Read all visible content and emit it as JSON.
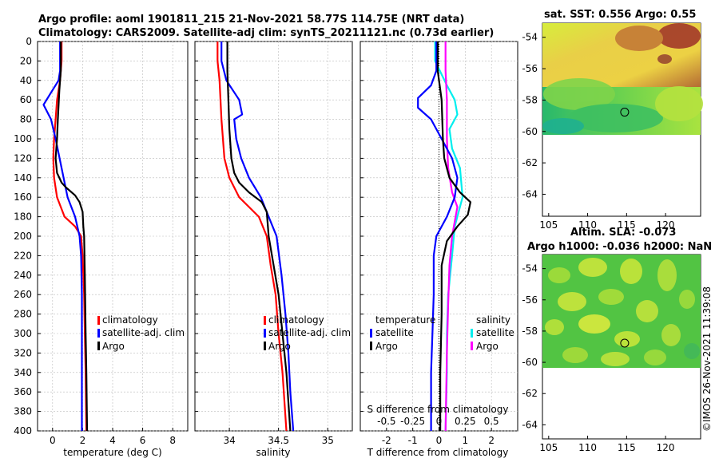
{
  "chart_data": {
    "type": "line",
    "title_line1": "Argo profile: aoml 1901811_215 21-Nov-2021 58.77S 114.75E (NRT data)",
    "title_line2": "Climatology: CARS2009. Satellite-adj clim: synTS_20211121.nc (0.73d earlier)",
    "depth_ticks": [
      "0",
      "20",
      "40",
      "60",
      "80",
      "100",
      "120",
      "140",
      "160",
      "180",
      "200",
      "220",
      "240",
      "260",
      "280",
      "300",
      "320",
      "340",
      "360",
      "380",
      "400"
    ],
    "ylim": [
      0,
      400
    ],
    "colors": {
      "climatology": "#ff0000",
      "satellite": "#0000ff",
      "argo": "#000000",
      "salinity_sat": "#00eeee",
      "salinity_argo": "#ff00ff"
    },
    "temperature_panel": {
      "xlabel": "temperature (deg C)",
      "xlim": [
        -1,
        9
      ],
      "xticks": [
        "0",
        "2",
        "4",
        "6",
        "8"
      ],
      "xtick_values": [
        0,
        2,
        4,
        6,
        8
      ],
      "legend": [
        "climatology",
        "satellite-adj. clim",
        "Argo"
      ],
      "series": {
        "climatology": [
          [
            0.6,
            0
          ],
          [
            0.6,
            20
          ],
          [
            0.5,
            40
          ],
          [
            0.3,
            60
          ],
          [
            0.2,
            80
          ],
          [
            0.1,
            100
          ],
          [
            0.05,
            120
          ],
          [
            0.1,
            140
          ],
          [
            0.3,
            160
          ],
          [
            0.8,
            180
          ],
          [
            1.5,
            190
          ],
          [
            1.9,
            200
          ],
          [
            2.0,
            220
          ],
          [
            2.1,
            260
          ],
          [
            2.15,
            300
          ],
          [
            2.2,
            340
          ],
          [
            2.25,
            400
          ]
        ],
        "satellite": [
          [
            0.5,
            0
          ],
          [
            0.5,
            30
          ],
          [
            0.4,
            40
          ],
          [
            -0.2,
            55
          ],
          [
            -0.6,
            65
          ],
          [
            -0.1,
            80
          ],
          [
            0.2,
            100
          ],
          [
            0.6,
            130
          ],
          [
            1.0,
            160
          ],
          [
            1.5,
            180
          ],
          [
            1.8,
            200
          ],
          [
            1.9,
            220
          ],
          [
            1.95,
            260
          ],
          [
            1.95,
            300
          ],
          [
            1.95,
            340
          ],
          [
            1.95,
            400
          ]
        ],
        "argo": [
          [
            0.55,
            0
          ],
          [
            0.55,
            30
          ],
          [
            0.45,
            50
          ],
          [
            0.35,
            80
          ],
          [
            0.3,
            100
          ],
          [
            0.2,
            120
          ],
          [
            0.3,
            135
          ],
          [
            0.6,
            145
          ],
          [
            0.9,
            150
          ],
          [
            1.5,
            158
          ],
          [
            1.8,
            165
          ],
          [
            2.0,
            175
          ],
          [
            2.05,
            190
          ],
          [
            2.1,
            200
          ],
          [
            2.15,
            240
          ],
          [
            2.2,
            300
          ],
          [
            2.25,
            340
          ],
          [
            2.3,
            400
          ]
        ]
      }
    },
    "salinity_panel": {
      "xlabel": "salinity",
      "xlim": [
        33.65,
        35.25
      ],
      "xticks": [
        "34",
        "34.5",
        "35"
      ],
      "xtick_values": [
        34,
        34.5,
        35
      ],
      "legend": [
        "climatology",
        "satellite-adj. clim",
        "Argo"
      ],
      "series": {
        "climatology": [
          [
            33.88,
            0
          ],
          [
            33.88,
            20
          ],
          [
            33.9,
            40
          ],
          [
            33.92,
            80
          ],
          [
            33.95,
            120
          ],
          [
            34.0,
            140
          ],
          [
            34.1,
            160
          ],
          [
            34.2,
            170
          ],
          [
            34.3,
            180
          ],
          [
            34.38,
            200
          ],
          [
            34.42,
            230
          ],
          [
            34.47,
            260
          ],
          [
            34.5,
            300
          ],
          [
            34.54,
            340
          ],
          [
            34.58,
            400
          ]
        ],
        "satellite": [
          [
            33.92,
            0
          ],
          [
            33.92,
            20
          ],
          [
            33.97,
            40
          ],
          [
            34.1,
            60
          ],
          [
            34.13,
            75
          ],
          [
            34.05,
            80
          ],
          [
            34.07,
            100
          ],
          [
            34.12,
            120
          ],
          [
            34.2,
            140
          ],
          [
            34.32,
            160
          ],
          [
            34.4,
            180
          ],
          [
            34.48,
            200
          ],
          [
            34.53,
            240
          ],
          [
            34.57,
            280
          ],
          [
            34.6,
            320
          ],
          [
            34.62,
            360
          ],
          [
            34.65,
            400
          ]
        ],
        "argo": [
          [
            33.98,
            0
          ],
          [
            33.98,
            30
          ],
          [
            33.99,
            60
          ],
          [
            34.0,
            90
          ],
          [
            34.02,
            120
          ],
          [
            34.05,
            135
          ],
          [
            34.1,
            145
          ],
          [
            34.2,
            155
          ],
          [
            34.33,
            165
          ],
          [
            34.38,
            175
          ],
          [
            34.4,
            200
          ],
          [
            34.45,
            230
          ],
          [
            34.5,
            260
          ],
          [
            34.54,
            300
          ],
          [
            34.58,
            340
          ],
          [
            34.62,
            400
          ]
        ]
      }
    },
    "difference_panel": {
      "xlabel": "T difference from climatology",
      "top_label": "S difference from climatology",
      "xlim": [
        -3,
        3
      ],
      "xticks": [
        "-2",
        "-1",
        "0",
        "1",
        "2"
      ],
      "xtick_values": [
        -2,
        -1,
        0,
        1,
        2
      ],
      "top_ticks": [
        "-0.5",
        "-0.25",
        "0",
        "0.25",
        "0.5"
      ],
      "top_tick_values": [
        -2,
        -1,
        0,
        1,
        2
      ],
      "legend_temperature": [
        "temperature",
        "satellite",
        "Argo"
      ],
      "legend_salinity": [
        "salinity",
        "satellite",
        "Argo"
      ],
      "series": {
        "temperature_satellite": [
          [
            -0.1,
            0
          ],
          [
            -0.1,
            30
          ],
          [
            -0.3,
            45
          ],
          [
            -0.8,
            58
          ],
          [
            -0.8,
            68
          ],
          [
            -0.3,
            80
          ],
          [
            0.1,
            100
          ],
          [
            0.5,
            120
          ],
          [
            0.7,
            140
          ],
          [
            0.6,
            160
          ],
          [
            0.3,
            180
          ],
          [
            -0.1,
            200
          ],
          [
            -0.2,
            220
          ],
          [
            -0.2,
            260
          ],
          [
            -0.25,
            300
          ],
          [
            -0.3,
            340
          ],
          [
            -0.3,
            400
          ]
        ],
        "temperature_argo": [
          [
            -0.05,
            0
          ],
          [
            -0.05,
            30
          ],
          [
            0.1,
            60
          ],
          [
            0.15,
            100
          ],
          [
            0.2,
            120
          ],
          [
            0.4,
            140
          ],
          [
            0.8,
            155
          ],
          [
            1.2,
            165
          ],
          [
            1.1,
            178
          ],
          [
            0.7,
            190
          ],
          [
            0.3,
            205
          ],
          [
            0.1,
            230
          ],
          [
            0.1,
            280
          ],
          [
            0.05,
            340
          ],
          [
            0.05,
            400
          ]
        ],
        "salinity_satellite": [
          [
            -0.15,
            0
          ],
          [
            -0.15,
            20
          ],
          [
            0.3,
            45
          ],
          [
            0.6,
            60
          ],
          [
            0.7,
            75
          ],
          [
            0.4,
            90
          ],
          [
            0.5,
            110
          ],
          [
            0.8,
            130
          ],
          [
            0.9,
            160
          ],
          [
            0.6,
            190
          ],
          [
            0.5,
            220
          ],
          [
            0.35,
            260
          ],
          [
            0.3,
            300
          ],
          [
            0.3,
            340
          ],
          [
            0.25,
            400
          ]
        ],
        "salinity_argo": [
          [
            0.25,
            0
          ],
          [
            0.25,
            30
          ],
          [
            0.3,
            60
          ],
          [
            0.3,
            100
          ],
          [
            0.35,
            130
          ],
          [
            0.5,
            155
          ],
          [
            0.7,
            170
          ],
          [
            0.6,
            185
          ],
          [
            0.5,
            200
          ],
          [
            0.4,
            230
          ],
          [
            0.35,
            270
          ],
          [
            0.3,
            320
          ],
          [
            0.25,
            400
          ]
        ]
      }
    },
    "map_sst": {
      "title": "sat. SST: 0.556 Argo: 0.55",
      "yticks": [
        "-54",
        "-56",
        "-58",
        "-60",
        "-62",
        "-64"
      ],
      "xticks": [
        "105",
        "110",
        "115",
        "120"
      ],
      "argo_lon": 114.75,
      "argo_lat": -58.77
    },
    "map_sla": {
      "title_line1": "Altim. SLA: -0.073",
      "title_line2": "Argo h1000: -0.036 h2000: NaN",
      "yticks": [
        "-54",
        "-56",
        "-58",
        "-60",
        "-62",
        "-64"
      ],
      "xticks": [
        "105",
        "110",
        "115",
        "120"
      ],
      "argo_lon": 114.75,
      "argo_lat": -58.77
    },
    "credit": "©IMOS 26-Nov-2021 11:39:08"
  }
}
